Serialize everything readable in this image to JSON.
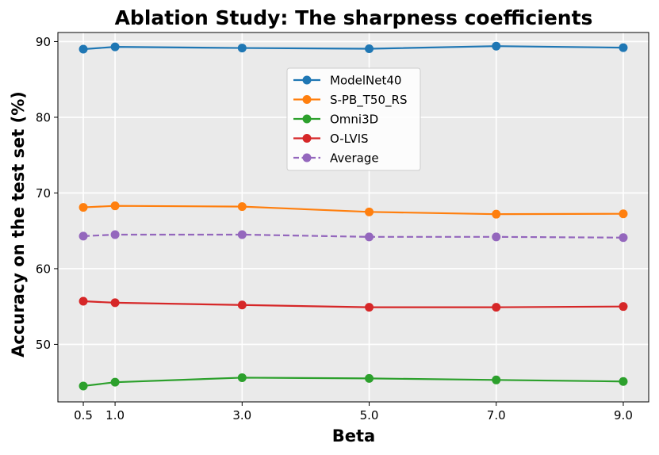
{
  "chart_data": {
    "type": "line",
    "title": "Ablation Study: The sharpness coefficients",
    "xlabel": "Beta",
    "ylabel": "Accuracy on the test set (%)",
    "x": [
      0.5,
      1.0,
      3.0,
      5.0,
      7.0,
      9.0
    ],
    "x_tick_labels": [
      "0.5",
      "1.0",
      "3.0",
      "5.0",
      "7.0",
      "9.0"
    ],
    "xlim": [
      0.1,
      9.4
    ],
    "ylim": [
      42.4,
      91.2
    ],
    "y_ticks": [
      50,
      60,
      70,
      80,
      90
    ],
    "grid": true,
    "legend_position": "upper-center",
    "series": [
      {
        "name": "ModelNet40",
        "color": "#1f77b4",
        "dashed": false,
        "values": [
          89.0,
          89.3,
          89.15,
          89.05,
          89.4,
          89.2
        ]
      },
      {
        "name": "S-PB_T50_RS",
        "color": "#ff7f0e",
        "dashed": false,
        "values": [
          68.1,
          68.3,
          68.2,
          67.5,
          67.2,
          67.25
        ]
      },
      {
        "name": "Omni3D",
        "color": "#2ca02c",
        "dashed": false,
        "values": [
          44.5,
          45.0,
          45.6,
          45.5,
          45.3,
          45.1
        ]
      },
      {
        "name": "O-LVIS",
        "color": "#d62728",
        "dashed": false,
        "values": [
          55.7,
          55.5,
          55.2,
          54.9,
          54.9,
          55.0
        ]
      },
      {
        "name": "Average",
        "color": "#9467bd",
        "dashed": true,
        "values": [
          64.3,
          64.5,
          64.5,
          64.2,
          64.2,
          64.1
        ]
      }
    ]
  }
}
